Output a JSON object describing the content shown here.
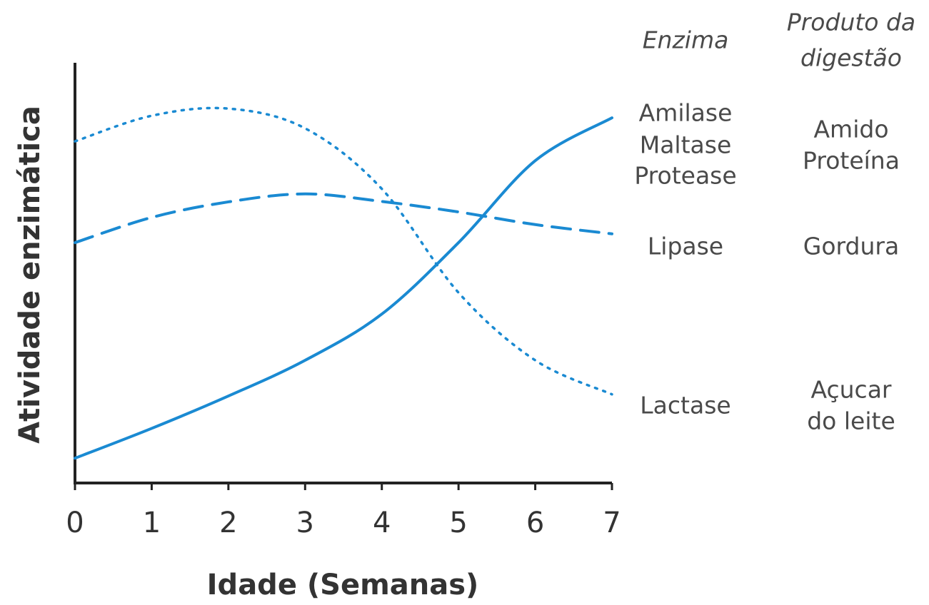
{
  "chart_data": {
    "type": "line",
    "xlabel": "Idade (Semanas)",
    "ylabel": "Atividade enzimática",
    "x": [
      0,
      1,
      2,
      3,
      4,
      5,
      6,
      7
    ],
    "xlim": [
      0,
      7
    ],
    "xticks": [
      0,
      1,
      2,
      3,
      4,
      5,
      6,
      7
    ],
    "ylim": [
      0,
      100
    ],
    "headers": {
      "enzyme": "Enzima",
      "product": [
        "Produto da",
        "digestão"
      ]
    },
    "series": [
      {
        "labels": [
          "Amilase",
          "Maltase",
          "Protease"
        ],
        "products": [
          "Amido",
          "Proteína"
        ],
        "color": "#1a8ad2",
        "dash": "solid",
        "values": [
          5.9,
          13,
          20.7,
          29.2,
          40.2,
          57.2,
          76.7,
          86.9
        ]
      },
      {
        "labels": [
          "Lipase"
        ],
        "products": [
          "Gordura"
        ],
        "color": "#1a8ad2",
        "dash": "dashed",
        "values": [
          57.2,
          63.2,
          66.9,
          68.8,
          67,
          64.5,
          61.5,
          59.3
        ]
      },
      {
        "labels": [
          "Lactase"
        ],
        "products": [
          "Açucar",
          "do leite"
        ],
        "color": "#1a8ad2",
        "dash": "dotted",
        "values": [
          81.3,
          87.4,
          89.1,
          84.4,
          70,
          45.3,
          29.2,
          21.1
        ]
      }
    ]
  }
}
